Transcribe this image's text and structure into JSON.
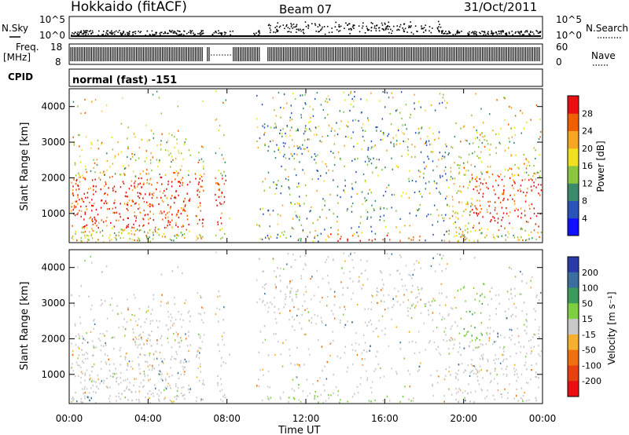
{
  "header": {
    "station": "Hokkaido (fitACF)",
    "beam": "Beam 07",
    "date": "31/Oct/2011"
  },
  "top_panels": {
    "nsky_label": "N.Sky",
    "nsky_ticks": [
      "10^5",
      "10^0"
    ],
    "nsearch_label": "N.Search",
    "nsearch_ticks": [
      "10^5",
      "10^0"
    ],
    "freq_label_line1": "Freq.",
    "freq_label_line2": "[MHz]",
    "freq_ticks": [
      "18",
      "8"
    ],
    "nave_label": "Nave",
    "nave_ticks": [
      "60",
      "0"
    ],
    "cpid_label": "CPID",
    "cpid_value": "normal (fast) -151"
  },
  "chart_data": [
    {
      "type": "heatmap",
      "name": "power",
      "ylabel": "Slant Range [km]",
      "ylim": [
        180,
        4500
      ],
      "yticks": [
        "1000",
        "2000",
        "3000",
        "4000"
      ],
      "colorbar_label": "Power [dB]",
      "colorbar_ticks": [
        "4",
        "8",
        "12",
        "16",
        "20",
        "24",
        "28"
      ],
      "colorbar_colors": [
        "#1010ff",
        "#2a55b8",
        "#3b8a6a",
        "#8cc63e",
        "#f0e020",
        "#f5a623",
        "#f06000",
        "#e81010"
      ]
    },
    {
      "type": "heatmap",
      "name": "velocity",
      "ylabel": "Slant Range [km]",
      "ylim": [
        180,
        4500
      ],
      "yticks": [
        "1000",
        "2000",
        "3000",
        "4000"
      ],
      "colorbar_label": "Velocity [m s⁻¹]",
      "colorbar_ticks": [
        "200",
        "100",
        "50",
        "15",
        "-15",
        "-50",
        "-100",
        "-200"
      ],
      "colorbar_colors": [
        "#2a3aa8",
        "#3a6fa0",
        "#3c9a5a",
        "#7fd040",
        "#c8c8c8",
        "#f5b030",
        "#f07010",
        "#e84010",
        "#e81010"
      ]
    }
  ],
  "x_axis": {
    "label": "Time UT",
    "ticks": [
      "00:00",
      "04:00",
      "08:00",
      "12:00",
      "16:00",
      "20:00",
      "00:00"
    ]
  }
}
